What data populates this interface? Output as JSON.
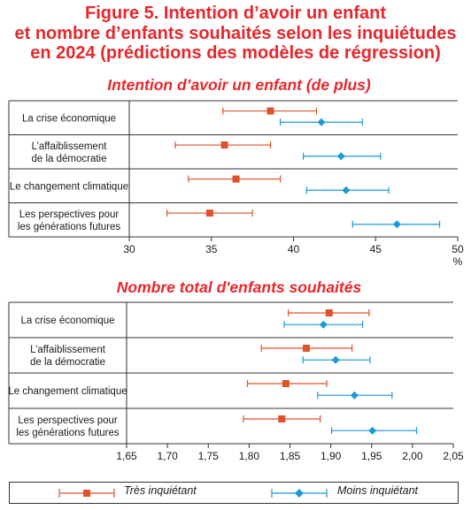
{
  "title_lines": [
    "Figure 5. Intention d’avoir un enfant",
    "et nombre d’enfants souhaités selon les inquiétudes",
    "en 2024 (prédictions des modèles de régression)"
  ],
  "colors": {
    "tres": "#e0522b",
    "moins": "#1a9ad6",
    "title": "#e8262b"
  },
  "legend": [
    {
      "label": "Très inquiétant",
      "color": "#e0522b",
      "marker": "square"
    },
    {
      "label": "Moins inquiétant",
      "color": "#1a9ad6",
      "marker": "diamond"
    }
  ],
  "chart_data": [
    {
      "type": "scatter",
      "subtype": "dot-with-error-bars",
      "title": "Intention d’avoir un enfant (de plus)",
      "xlabel": "%",
      "xlim": [
        30,
        50
      ],
      "xticks": [
        "30",
        "35",
        "40",
        "45",
        "50"
      ],
      "categories": [
        "La crise économique",
        "L’affaiblissement\nde la démocratie",
        "Le changement climatique",
        "Les perspectives pour\nles générations futures"
      ],
      "series": [
        {
          "name": "Très inquiétant",
          "values": [
            38.6,
            35.8,
            36.5,
            34.9
          ],
          "low": [
            35.7,
            32.8,
            33.6,
            32.3
          ],
          "high": [
            41.4,
            38.6,
            39.2,
            37.5
          ]
        },
        {
          "name": "Moins inquiétant",
          "values": [
            41.7,
            42.9,
            43.2,
            46.3
          ],
          "low": [
            39.2,
            40.6,
            40.8,
            43.6
          ],
          "high": [
            44.2,
            45.3,
            45.8,
            48.9
          ]
        }
      ]
    },
    {
      "type": "scatter",
      "subtype": "dot-with-error-bars",
      "title": "Nombre total d'enfants souhaités",
      "xlabel": "",
      "xlim": [
        1.65,
        2.05
      ],
      "xticks": [
        "1,65",
        "1,70",
        "1,75",
        "1,80",
        "1,85",
        "1,90",
        "1,95",
        "2,00",
        "2,05"
      ],
      "categories": [
        "La crise économique",
        "L’affaiblissement\nde la démocratie",
        "Le changement climatique",
        "Les perspectives pour\nles générations futures"
      ],
      "series": [
        {
          "name": "Très inquiétant",
          "values": [
            1.898,
            1.87,
            1.845,
            1.84
          ],
          "low": [
            1.848,
            1.815,
            1.798,
            1.793
          ],
          "high": [
            1.947,
            1.926,
            1.895,
            1.887
          ]
        },
        {
          "name": "Moins inquiétant",
          "values": [
            1.891,
            1.906,
            1.929,
            1.951
          ],
          "low": [
            1.843,
            1.866,
            1.884,
            1.901
          ],
          "high": [
            1.939,
            1.948,
            1.975,
            2.005
          ]
        }
      ]
    }
  ]
}
